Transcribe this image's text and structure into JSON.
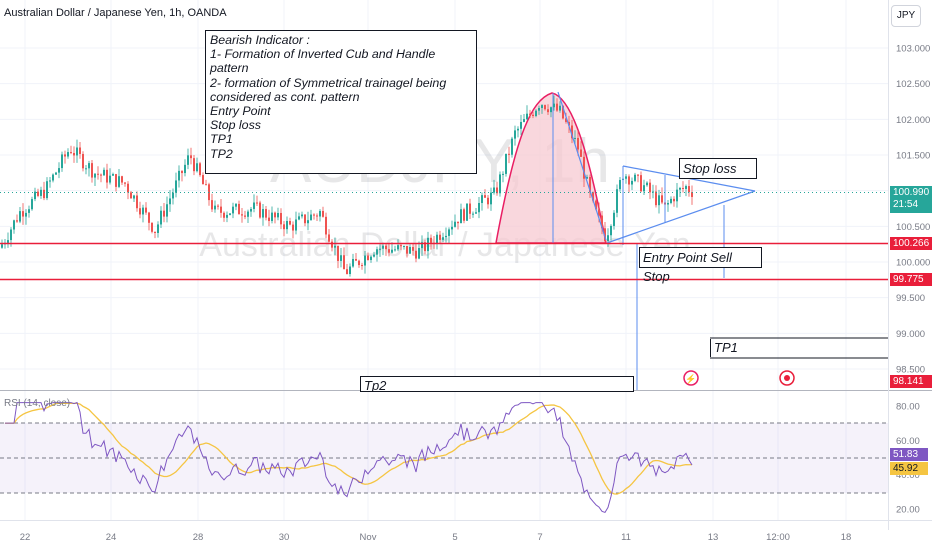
{
  "header": {
    "symbol_title": "Australian Dollar / Japanese Yen, 1h, OANDA",
    "currency_button": "JPY"
  },
  "watermark": {
    "ticker": "AUDJPY, 1h",
    "name": "Australian Dollar / Japanese Yen"
  },
  "colors": {
    "up": "#26a69a",
    "down": "#ef5350",
    "level_line": "#e91e3a",
    "drawing": "#5b8def",
    "rsi_line": "#7e57c2",
    "rsi_ma": "#f5c542",
    "cup_fill": "#f7c9d2",
    "price_tag_blue": "#2962ff"
  },
  "annotations": {
    "indicator_box": [
      "Bearish Indicator :",
      "1- Formation of Inverted Cub and Handle",
      "pattern",
      "2- formation of Symmetrical trainagel being",
      "considered as cont. pattern",
      "Entry Point",
      "Stop loss",
      "TP1",
      "TP2"
    ],
    "stop_loss": "Stop loss",
    "entry": "Entry Point Sell Stop",
    "tp1": "TP1",
    "tp2": "Tp2"
  },
  "price_tags": {
    "current": "100.990",
    "countdown": "21:54",
    "entry_level": "100.266",
    "stop_level": "99.775",
    "tp_level": "98.141"
  },
  "rsi": {
    "label": "RSI (14, close)",
    "value": "51.83",
    "ma_value": "45.92"
  },
  "chart_data": [
    {
      "type": "candlestick",
      "title": "Australian Dollar / Japanese Yen, 1h, OANDA",
      "y_ticks": [
        "103.000",
        "102.500",
        "102.000",
        "101.500",
        "101.000",
        "100.500",
        "100.000",
        "99.500",
        "99.000",
        "98.500"
      ],
      "ylim": [
        98.2,
        103.3
      ],
      "x_ticks": [
        "22",
        "24",
        "28",
        "30",
        "Nov",
        "5",
        "7",
        "11",
        "13",
        "12:00",
        "18"
      ],
      "levels": [
        100.266,
        99.775
      ],
      "current_price": 100.99
    },
    {
      "type": "line",
      "title": "RSI (14, close)",
      "y_ticks": [
        "80.00",
        "60.00",
        "40.00",
        "20.00"
      ],
      "ylim": [
        15,
        83
      ],
      "bands": [
        70,
        50,
        30
      ],
      "value": 51.83,
      "ma_value": 45.92
    }
  ]
}
